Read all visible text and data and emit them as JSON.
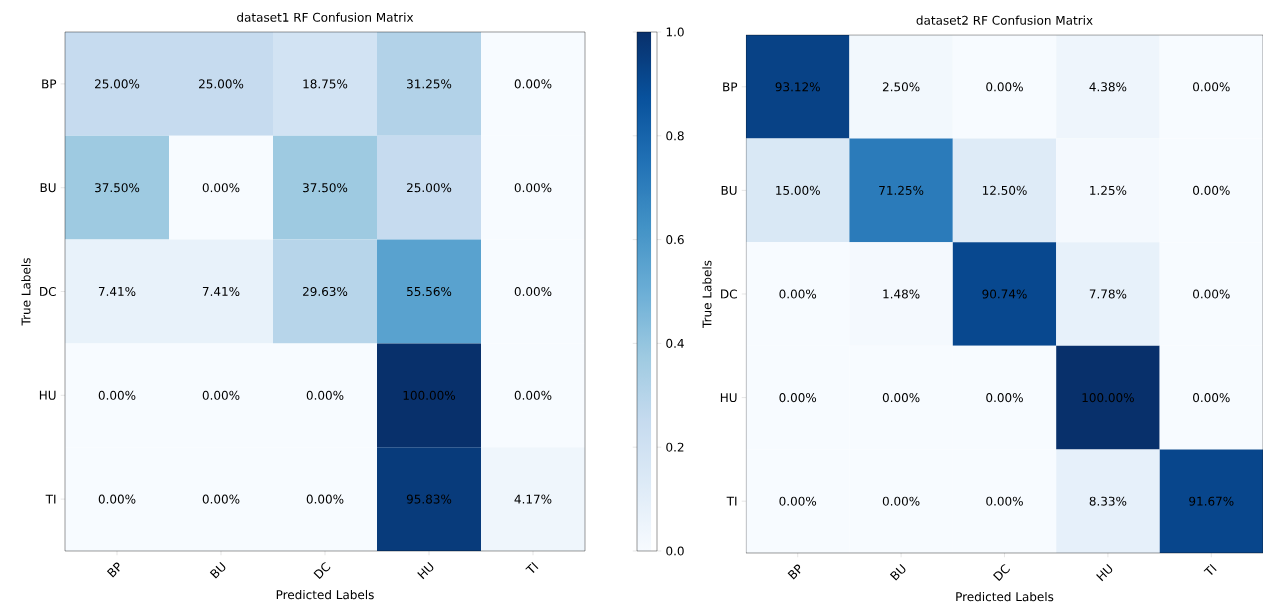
{
  "chart_data": [
    {
      "type": "heatmap",
      "title": "dataset1 RF Confusion Matrix",
      "xlabel": "Predicted Labels",
      "ylabel": "True Labels",
      "categories": [
        "BP",
        "BU",
        "DC",
        "HU",
        "TI"
      ],
      "y_categories": [
        "BP",
        "BU",
        "DC",
        "HU",
        "TI"
      ],
      "cells": [
        [
          0.25,
          0.25,
          0.1875,
          0.3125,
          0.0
        ],
        [
          0.375,
          0.0,
          0.375,
          0.25,
          0.0
        ],
        [
          0.0741,
          0.0741,
          0.2963,
          0.5556,
          0.0
        ],
        [
          0.0,
          0.0,
          0.0,
          1.0,
          0.0
        ],
        [
          0.0,
          0.0,
          0.0,
          0.9583,
          0.0417
        ]
      ],
      "cell_labels": [
        [
          "25.00%",
          "25.00%",
          "18.75%",
          "31.25%",
          "0.00%"
        ],
        [
          "37.50%",
          "0.00%",
          "37.50%",
          "25.00%",
          "0.00%"
        ],
        [
          "7.41%",
          "7.41%",
          "29.63%",
          "55.56%",
          "0.00%"
        ],
        [
          "0.00%",
          "0.00%",
          "0.00%",
          "100.00%",
          "0.00%"
        ],
        [
          "0.00%",
          "0.00%",
          "0.00%",
          "95.83%",
          "4.17%"
        ]
      ],
      "clim": [
        0,
        1
      ],
      "cticks": [
        {
          "value": 0,
          "label": "0.0"
        },
        {
          "value": 0.2,
          "label": "0.2"
        },
        {
          "value": 0.4,
          "label": "0.4"
        },
        {
          "value": 0.6,
          "label": "0.6"
        },
        {
          "value": 0.8,
          "label": "0.8"
        },
        {
          "value": 1,
          "label": "1.0"
        }
      ]
    },
    {
      "type": "heatmap",
      "title": "dataset2 RF Confusion Matrix",
      "xlabel": "Predicted Labels",
      "ylabel": "True Labels",
      "categories": [
        "BP",
        "BU",
        "DC",
        "HU",
        "TI"
      ],
      "y_categories": [
        "BP",
        "BU",
        "DC",
        "HU",
        "TI"
      ],
      "cells": [
        [
          0.9312,
          0.025,
          0.0,
          0.0438,
          0.0
        ],
        [
          0.15,
          0.7125,
          0.125,
          0.0125,
          0.0
        ],
        [
          0.0,
          0.0148,
          0.9074,
          0.0778,
          0.0
        ],
        [
          0.0,
          0.0,
          0.0,
          1.0,
          0.0
        ],
        [
          0.0,
          0.0,
          0.0,
          0.0833,
          0.9167
        ]
      ],
      "cell_labels": [
        [
          "93.12%",
          "2.50%",
          "0.00%",
          "4.38%",
          "0.00%"
        ],
        [
          "15.00%",
          "71.25%",
          "12.50%",
          "1.25%",
          "0.00%"
        ],
        [
          "0.00%",
          "1.48%",
          "90.74%",
          "7.78%",
          "0.00%"
        ],
        [
          "0.00%",
          "0.00%",
          "0.00%",
          "100.00%",
          "0.00%"
        ],
        [
          "0.00%",
          "0.00%",
          "0.00%",
          "8.33%",
          "91.67%"
        ]
      ]
    }
  ]
}
